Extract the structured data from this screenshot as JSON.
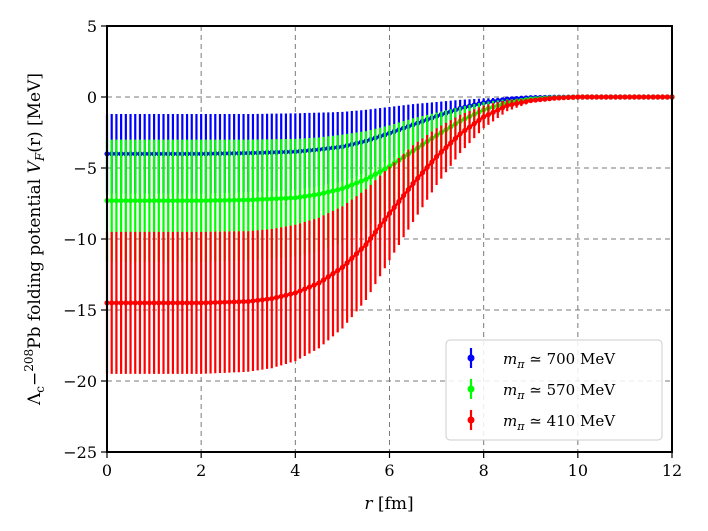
{
  "chart_data": {
    "type": "line",
    "xlabel_var": "r",
    "xlabel_unit": "[fm]",
    "ylabel_pre": "Λ",
    "ylabel_sub": "c",
    "ylabel_mid": "−",
    "ylabel_sup": "208",
    "ylabel_post": "Pb folding potential ",
    "ylabel_func": "V",
    "ylabel_func_sub": "F",
    "ylabel_args": "(r) [MeV]",
    "xlim": [
      0,
      12
    ],
    "ylim": [
      -25,
      5
    ],
    "x_ticks": [
      "0",
      "2",
      "4",
      "6",
      "8",
      "10",
      "12"
    ],
    "y_ticks": [
      "5",
      "0",
      "−5",
      "−10",
      "−15",
      "−20",
      "−25"
    ],
    "grid": true,
    "legend_position": "lower-right",
    "series": [
      {
        "name_var": "m",
        "name_sub": "π",
        "name_rest": " ≃ 700 MeV",
        "color": "#0000ff",
        "center": {
          "r": [
            0,
            1,
            2,
            3,
            4,
            4.5,
            5,
            5.5,
            6,
            6.5,
            7,
            7.5,
            8,
            8.5,
            9,
            9.5,
            10,
            11,
            12
          ],
          "v": [
            -4.0,
            -4.0,
            -4.0,
            -3.95,
            -3.85,
            -3.7,
            -3.5,
            -3.1,
            -2.55,
            -1.95,
            -1.35,
            -0.8,
            -0.4,
            -0.15,
            -0.05,
            -0.02,
            0.0,
            0.0,
            0.0
          ]
        },
        "error": {
          "r": [
            0,
            1,
            2,
            3,
            4,
            4.5,
            5,
            5.5,
            6,
            6.5,
            7,
            7.5,
            8,
            8.5,
            9,
            9.5,
            10,
            11,
            12
          ],
          "e": [
            2.8,
            2.8,
            2.8,
            2.75,
            2.7,
            2.6,
            2.45,
            2.2,
            1.85,
            1.45,
            1.0,
            0.6,
            0.3,
            0.12,
            0.04,
            0.01,
            0.0,
            0.0,
            0.0
          ]
        }
      },
      {
        "name_var": "m",
        "name_sub": "π",
        "name_rest": " ≃ 570 MeV",
        "color": "#00ff00",
        "center": {
          "r": [
            0,
            1,
            2,
            3,
            4,
            4.5,
            5,
            5.5,
            6,
            6.5,
            7,
            7.5,
            8,
            8.5,
            9,
            9.5,
            10,
            11,
            12
          ],
          "v": [
            -7.3,
            -7.3,
            -7.3,
            -7.25,
            -7.1,
            -6.85,
            -6.45,
            -5.8,
            -4.9,
            -3.8,
            -2.7,
            -1.7,
            -0.9,
            -0.4,
            -0.15,
            -0.05,
            0.0,
            0.0,
            0.0
          ]
        },
        "error": {
          "r": [
            0,
            1,
            2,
            3,
            4,
            4.5,
            5,
            5.5,
            6,
            6.5,
            7,
            7.5,
            8,
            8.5,
            9,
            9.5,
            10,
            11,
            12
          ],
          "e": [
            4.3,
            4.3,
            4.3,
            4.25,
            4.15,
            4.0,
            3.8,
            3.4,
            2.9,
            2.3,
            1.6,
            1.0,
            0.55,
            0.25,
            0.08,
            0.02,
            0.0,
            0.0,
            0.0
          ]
        }
      },
      {
        "name_var": "m",
        "name_sub": "π",
        "name_rest": " ≃ 410 MeV",
        "color": "#ff0000",
        "center": {
          "r": [
            0,
            1,
            2,
            3,
            3.5,
            4,
            4.5,
            5,
            5.5,
            6,
            6.5,
            7,
            7.5,
            8,
            8.5,
            9,
            9.5,
            10,
            11,
            12
          ],
          "v": [
            -14.5,
            -14.5,
            -14.5,
            -14.4,
            -14.2,
            -13.8,
            -13.1,
            -12.0,
            -10.4,
            -8.2,
            -6.1,
            -4.2,
            -2.6,
            -1.4,
            -0.6,
            -0.25,
            -0.08,
            0.0,
            0.0,
            0.0
          ]
        },
        "error": {
          "r": [
            0,
            1,
            2,
            3,
            3.5,
            4,
            4.5,
            5,
            5.5,
            6,
            6.5,
            7,
            7.5,
            8,
            8.5,
            9,
            9.5,
            10,
            11,
            12
          ],
          "e": [
            5.0,
            5.0,
            5.0,
            4.95,
            4.9,
            4.8,
            4.6,
            4.3,
            3.9,
            3.3,
            2.7,
            2.0,
            1.35,
            0.8,
            0.4,
            0.15,
            0.05,
            0.0,
            0.0,
            0.0
          ]
        }
      }
    ]
  }
}
